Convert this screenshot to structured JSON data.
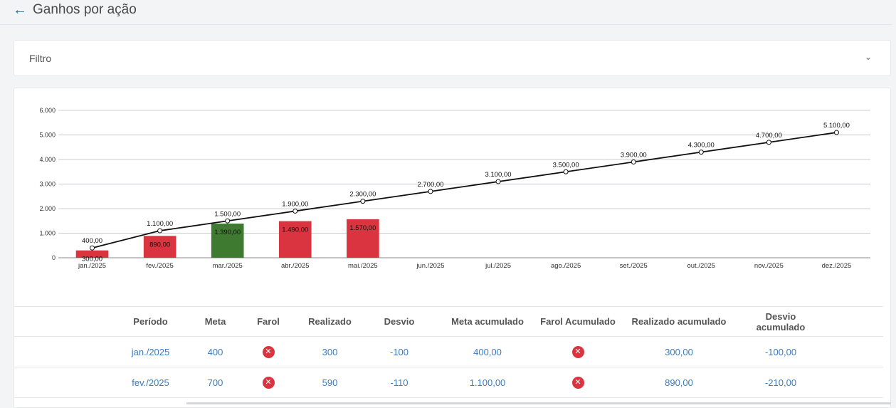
{
  "header": {
    "title": "Ganhos por ação",
    "back_icon": "arrow-left-icon"
  },
  "filter": {
    "label": "Filtro",
    "toggle_icon": "chevron-down-icon"
  },
  "colors": {
    "accent": "#1f6f8b",
    "bar_red": "#d9343f",
    "bar_green": "#3e7b30",
    "link": "#3a7bbd"
  },
  "chart_data": {
    "type": "bar",
    "categories": [
      "jan./2025",
      "fev./2025",
      "mar./2025",
      "abr./2025",
      "mai./2025",
      "jun./2025",
      "jul./2025",
      "ago./2025",
      "set./2025",
      "out./2025",
      "nov./2025",
      "dez./2025"
    ],
    "series": [
      {
        "kind": "bar",
        "values": [
          300,
          890,
          1390,
          1490,
          1570,
          null,
          null,
          null,
          null,
          null,
          null,
          null
        ],
        "labels": [
          "300,00",
          "890,00",
          "1.390,00",
          "1.490,00",
          "1.570,00",
          "",
          "",
          "",
          "",
          "",
          "",
          ""
        ],
        "colors": [
          "#d9343f",
          "#d9343f",
          "#3e7b30",
          "#d9343f",
          "#d9343f",
          null,
          null,
          null,
          null,
          null,
          null,
          null
        ]
      },
      {
        "kind": "line",
        "values": [
          400,
          1100,
          1500,
          1900,
          2300,
          2700,
          3100,
          3500,
          3900,
          4300,
          4700,
          5100
        ],
        "labels": [
          "400,00",
          "1.100,00",
          "1.500,00",
          "1.900,00",
          "2.300,00",
          "2.700,00",
          "3.100,00",
          "3.500,00",
          "3.900,00",
          "4.300,00",
          "4.700,00",
          "5.100,00"
        ],
        "color": "#111111"
      }
    ],
    "ylim": [
      0,
      6000
    ],
    "yticks": [
      0,
      1000,
      2000,
      3000,
      4000,
      5000,
      6000
    ],
    "ytick_labels": [
      "0",
      "1.000",
      "2.000",
      "3.000",
      "4.000",
      "5.000",
      "6.000"
    ],
    "grid": true
  },
  "table": {
    "columns": [
      "Período",
      "Meta",
      "Farol",
      "Realizado",
      "Desvio",
      "Meta acumulado",
      "Farol Acumulado",
      "Realizado acumulado",
      "Desvio acumulado"
    ],
    "rows": [
      {
        "periodo": "jan./2025",
        "meta": "400",
        "farol": "error-icon",
        "realizado": "300",
        "desvio": "-100",
        "meta_acum": "400,00",
        "farol_acum": "error-icon",
        "realizado_acum": "300,00",
        "desvio_acum": "-100,00"
      },
      {
        "periodo": "fev./2025",
        "meta": "700",
        "farol": "error-icon",
        "realizado": "590",
        "desvio": "-110",
        "meta_acum": "1.100,00",
        "farol_acum": "error-icon",
        "realizado_acum": "890,00",
        "desvio_acum": "-210,00"
      }
    ]
  }
}
